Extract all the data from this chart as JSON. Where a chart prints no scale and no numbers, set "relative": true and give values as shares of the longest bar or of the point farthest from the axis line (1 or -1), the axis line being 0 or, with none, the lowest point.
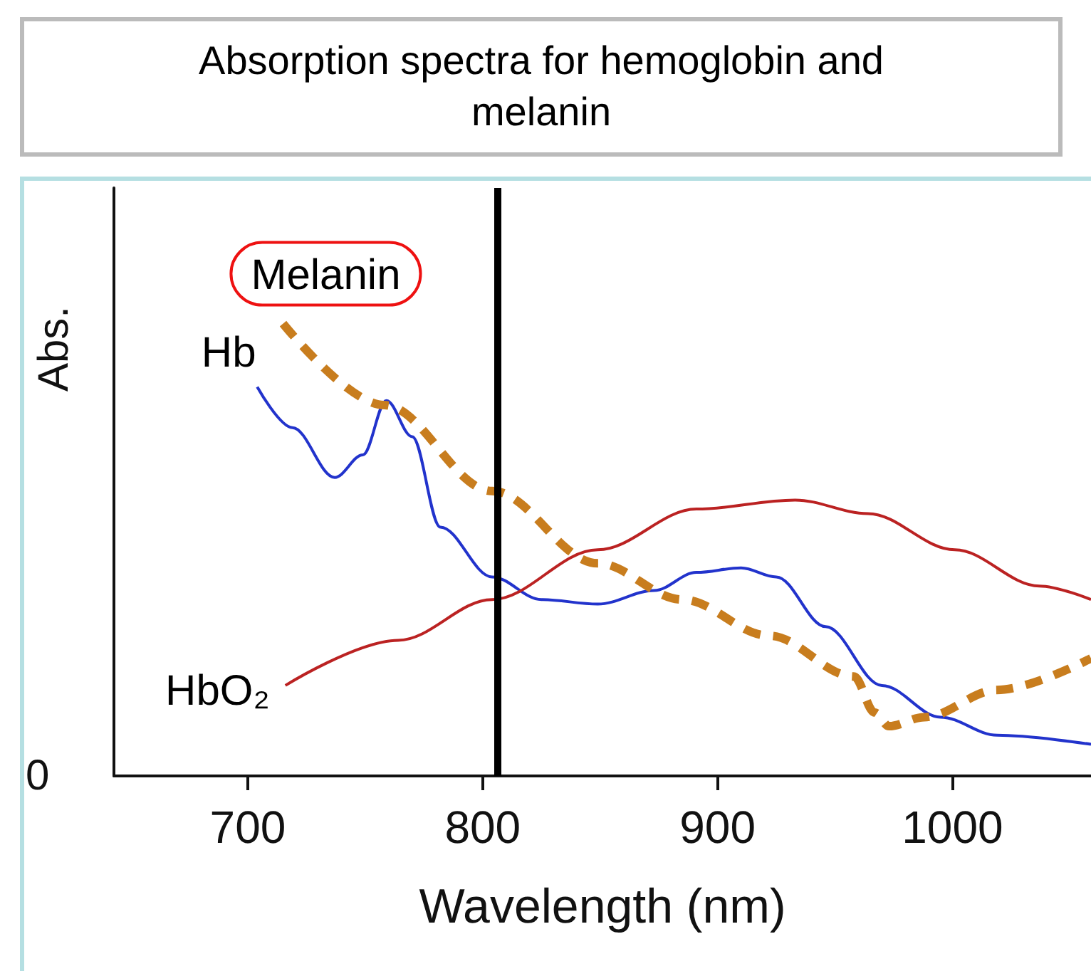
{
  "chart_data": {
    "type": "line",
    "title": "Absorption spectra for hemoglobin and melanin",
    "xlabel": "Wavelength (nm)",
    "ylabel": "Abs.",
    "relative": true,
    "xlim": [
      643,
      1059
    ],
    "xticks": [
      700,
      800,
      900,
      1000
    ],
    "grid": false,
    "legend": false,
    "series": [
      {
        "name": "Hb",
        "color": "#2233cc",
        "line_style": "solid",
        "x": [
          704,
          719,
          737,
          749,
          759,
          770,
          782,
          804,
          825,
          849,
          873,
          891,
          910,
          925,
          946,
          970,
          995,
          1019,
          1059
        ],
        "values": [
          0.86,
          0.77,
          0.66,
          0.71,
          0.83,
          0.75,
          0.55,
          0.44,
          0.39,
          0.38,
          0.41,
          0.45,
          0.46,
          0.44,
          0.33,
          0.2,
          0.13,
          0.09,
          0.07
        ]
      },
      {
        "name": "HbO₂",
        "color": "#bb2222",
        "line_style": "solid",
        "x": [
          716,
          764,
          804,
          849,
          891,
          933,
          964,
          1001,
          1037,
          1059
        ],
        "values": [
          0.2,
          0.3,
          0.39,
          0.5,
          0.59,
          0.61,
          0.58,
          0.5,
          0.42,
          0.39
        ]
      },
      {
        "name": "Melanin",
        "color": "#c87d1e",
        "line_style": "dashed",
        "x": [
          715,
          758,
          804,
          849,
          885,
          922,
          958,
          967,
          973,
          988,
          1019,
          1059
        ],
        "values": [
          1,
          0.82,
          0.63,
          0.47,
          0.39,
          0.31,
          0.22,
          0.14,
          0.11,
          0.13,
          0.19,
          0.26
        ]
      }
    ],
    "ref_lines": [
      {
        "axis": "x",
        "value": 806,
        "color": "#000000",
        "line_style": "solid"
      }
    ],
    "annotations": [
      "0"
    ]
  }
}
